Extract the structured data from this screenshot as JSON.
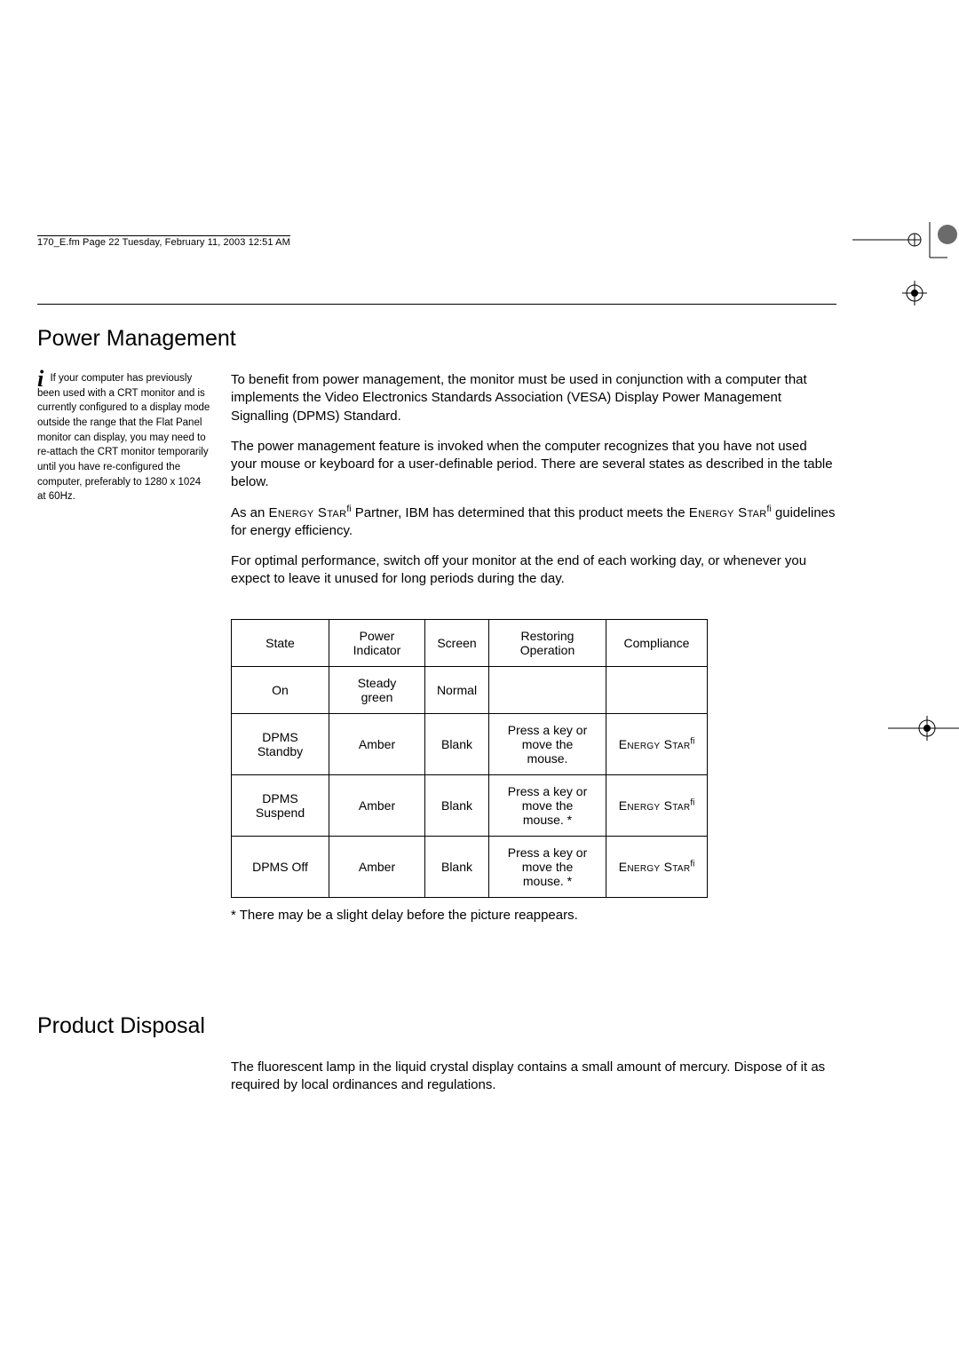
{
  "header_line": "170_E.fm  Page 22  Tuesday, February 11, 2003  12:51 AM",
  "power_mgmt": {
    "title": "Power Management",
    "sidenote_leadin": "If your computer has previously been used",
    "sidenote_rest": " with a CRT monitor and is currently configured to a display mode outside the range that the Flat Panel monitor can display, you may need to re-attach the CRT monitor temporarily until you have re-configured the computer, preferably to 1280 x 1024 at 60Hz.",
    "p1": "To benefit from power management, the monitor must be used in conjunction with a computer that implements the Video Electronics Standards Association (VESA) Display Power Management Signalling (DPMS) Standard.",
    "p2": "The power management feature is invoked when the computer recognizes that you have not used your mouse or keyboard for a user-definable period. There are several states as described in the table below.",
    "p3_a": "As an ",
    "p3_b": " Partner, IBM has determined that this product meets the ",
    "p3_c": " guidelines for energy efficiency.",
    "p4": "For optimal performance, switch off your monitor at the end of each working day, or whenever you expect to leave it unused for long periods during the day.",
    "energy_star": "Energy Star",
    "energy_star_sup": "fi",
    "table": {
      "headers": {
        "state": "State",
        "indicator": "Power Indicator",
        "screen": "Screen",
        "restore": "Restoring Operation",
        "compliance": "Compliance"
      },
      "rows": [
        {
          "state": "On",
          "indicator": "Steady green",
          "screen": "Normal",
          "restore": "",
          "compliance": ""
        },
        {
          "state": "DPMS Standby",
          "indicator": "Amber",
          "screen": "Blank",
          "restore": "Press a key or move the mouse.",
          "compliance": "ES"
        },
        {
          "state": "DPMS Suspend",
          "indicator": "Amber",
          "screen": "Blank",
          "restore": "Press a key or move the mouse. *",
          "compliance": "ES"
        },
        {
          "state": "DPMS Off",
          "indicator": "Amber",
          "screen": "Blank",
          "restore": "Press a key or move the mouse. *",
          "compliance": "ES"
        }
      ]
    },
    "footnote": "* There may be a slight delay before the picture reappears."
  },
  "disposal": {
    "title": "Product Disposal",
    "p1": "The fluorescent lamp in the liquid crystal display contains a small amount of mercury. Dispose of it as required by local ordinances and regulations."
  },
  "colors": {
    "text": "#000000",
    "bg": "#ffffff",
    "rule": "#000000"
  }
}
